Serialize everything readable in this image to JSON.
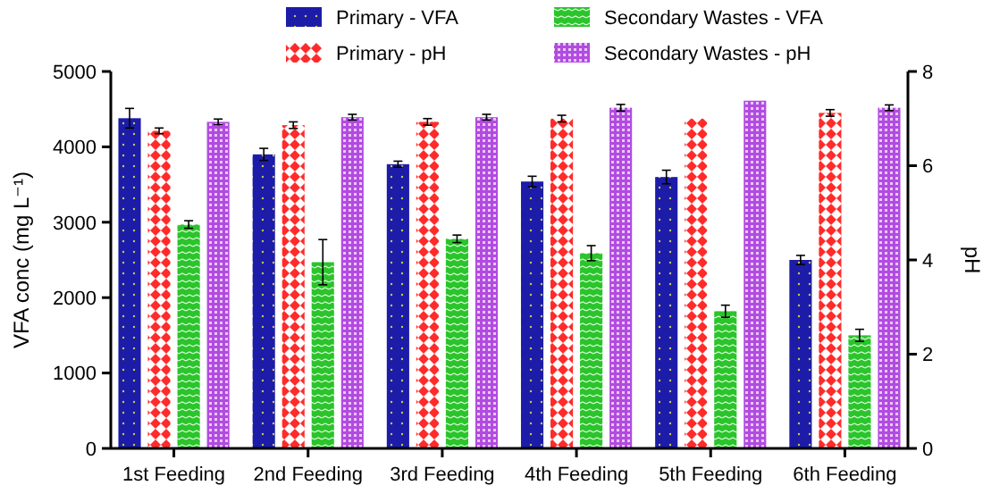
{
  "chart_data": {
    "type": "bar",
    "categories": [
      "1st Feeding",
      "2nd Feeding",
      "3rd Feeding",
      "4th Feeding",
      "5th Feeding",
      "6th Feeding"
    ],
    "ylabel": "VFA conc (mg L⁻¹)",
    "y2label": "pH",
    "ylim": [
      0,
      5000
    ],
    "yticks": [
      0,
      1000,
      2000,
      3000,
      4000,
      5000
    ],
    "y2lim": [
      0,
      8
    ],
    "y2ticks": [
      0,
      2,
      4,
      6,
      8
    ],
    "legend": "top",
    "grid": false,
    "series": [
      {
        "name": "Primary - VFA",
        "color": "#1c1ca8",
        "values": [
          4380,
          3900,
          3770,
          3540,
          3600,
          2500
        ],
        "errors": [
          130,
          80,
          40,
          70,
          90,
          60
        ]
      },
      {
        "name": "Primary - pH",
        "color": "#ff2b2b",
        "axis": "y2",
        "values": [
          6.74,
          6.86,
          6.93,
          7.0,
          7.0,
          7.12
        ],
        "errors": [
          0.06,
          0.07,
          0.07,
          0.07,
          null,
          0.07
        ]
      },
      {
        "name": "Secondary Wastes - VFA",
        "color": "#2bc42b",
        "values": [
          2970,
          2470,
          2780,
          2590,
          1820,
          1500
        ],
        "errors": [
          50,
          300,
          50,
          100,
          80,
          80
        ]
      },
      {
        "name": "Secondary Wastes - pH",
        "color": "#b24be0",
        "axis": "y2",
        "values": [
          6.93,
          7.03,
          7.03,
          7.23,
          7.38,
          7.23
        ],
        "errors": [
          0.06,
          0.06,
          0.06,
          0.07,
          null,
          0.06
        ]
      }
    ]
  }
}
